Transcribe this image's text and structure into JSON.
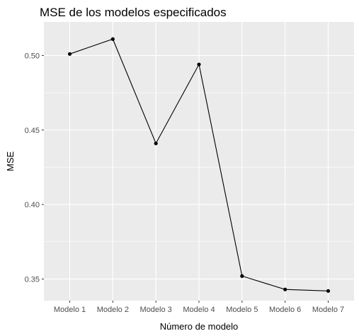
{
  "chart_data": {
    "type": "line",
    "title": "MSE de los modelos especificados",
    "xlabel": "Número de modelo",
    "ylabel": "MSE",
    "categories": [
      "Modelo 1",
      "Modelo 2",
      "Modelo 3",
      "Modelo 4",
      "Modelo 5",
      "Modelo 6",
      "Modelo 7"
    ],
    "values": [
      0.501,
      0.511,
      0.441,
      0.494,
      0.352,
      0.343,
      0.342
    ],
    "yticks": [
      "0.35",
      "0.40",
      "0.45",
      "0.50"
    ],
    "ylim": [
      0.3355,
      0.5225
    ],
    "grid": true,
    "colors": {
      "panel": "#ebebeb",
      "grid_major": "#ffffff",
      "line": "#000000"
    }
  }
}
